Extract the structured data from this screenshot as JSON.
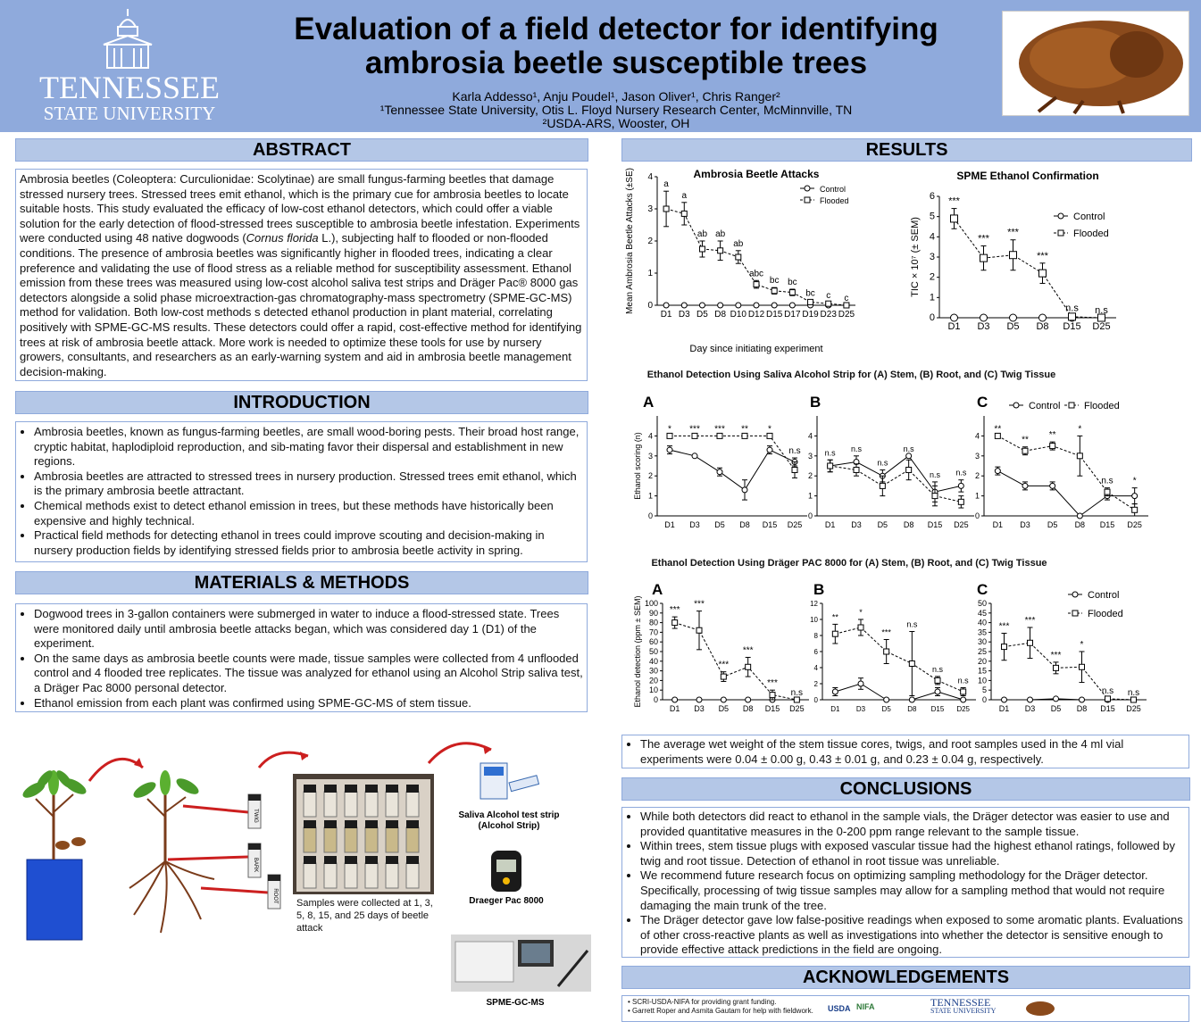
{
  "header": {
    "title_line1": "Evaluation of a field detector for identifying",
    "title_line2": "ambrosia beetle susceptible trees",
    "authors": "Karla Addesso¹, Anju Poudel¹, Jason Oliver¹, Chris Ranger²",
    "affil1": "¹Tennessee State University, Otis L. Floyd Nursery Research Center, McMinnville, TN",
    "affil2": "²USDA-ARS, Wooster, OH",
    "logo_line1": "TENNESSEE",
    "logo_line2": "STATE UNIVERSITY"
  },
  "abstract": {
    "heading": "ABSTRACT",
    "text_a": "Ambrosia beetles (Coleoptera: Curculionidae: Scolytinae) are small fungus-farming beetles that damage stressed nursery trees. Stressed trees emit ethanol, which is the primary cue for ambrosia beetles to locate suitable hosts. This study evaluated the efficacy of low-cost ethanol detectors, which could offer a viable solution for the early detection of flood-stressed trees susceptible to ambrosia beetle infestation. Experiments were conducted using 48 native dogwoods (",
    "text_italic": "Cornus florida",
    "text_b": " L.), subjecting half to flooded or non-flooded conditions. The presence of ambrosia beetles was significantly higher in flooded trees, indicating a clear preference and validating the use of flood stress as a reliable method for susceptibility assessment. Ethanol emission from these trees was measured using low-cost alcohol saliva test strips and Dräger Pac® 8000 gas detectors alongside a solid phase microextraction-gas chromatography-mass spectrometry (SPME-GC-MS) method for validation. Both low-cost methods s detected ethanol production in plant material, correlating positively with SPME-GC-MS results. These detectors could offer a rapid, cost-effective method for identifying trees at risk of ambrosia beetle attack. More work is needed to optimize these tools for use by nursery growers, consultants, and researchers as an early-warning system and aid in ambrosia beetle management decision-making."
  },
  "introduction": {
    "heading": "INTRODUCTION",
    "items": [
      "Ambrosia beetles, known as fungus-farming beetles, are small wood-boring pests. Their broad host range, cryptic habitat, haplodiploid reproduction, and sib-mating favor their dispersal and establishment in new regions.",
      "Ambrosia beetles are attracted to stressed trees in nursery production. Stressed trees emit ethanol, which is the primary ambrosia beetle attractant.",
      "Chemical methods exist to detect ethanol emission in trees, but these methods have historically been expensive and highly technical.",
      "Practical field methods for detecting ethanol in trees could improve scouting and decision-making in nursery production fields by identifying stressed fields prior to ambrosia beetle activity in spring."
    ]
  },
  "methods": {
    "heading": "MATERIALS & METHODS",
    "items": [
      "Dogwood trees in 3-gallon containers were submerged in water to induce a flood-stressed state. Trees were monitored daily until ambrosia beetle attacks began, which was considered day 1 (D1) of the experiment.",
      "On the same days as ambrosia beetle counts were made, tissue samples were collected from 4 unflooded control and 4 flooded tree replicates. The tissue was analyzed for ethanol using an Alcohol Strip saliva test, a Dräger Pac 8000 personal detector.",
      "Ethanol emission from each plant was confirmed using SPME-GC-MS of stem tissue."
    ],
    "fig": {
      "twig": "TWIG",
      "bark": "BARK",
      "root": "ROOT",
      "samples_caption": "Samples were collected at 1, 3, 5, 8, 15, and 25 days of beetle attack",
      "strip_label1": "Saliva Alcohol test strip",
      "strip_label2": "(Alcohol Strip)",
      "drager_label": "Draeger Pac 8000",
      "gcms_label": "SPME-GC-MS"
    }
  },
  "results": {
    "heading": "RESULTS",
    "note": "The average wet weight of the stem tissue cores, twigs, and root samples used in the 4 ml vial experiments were 0.04 ± 0.00 g, 0.43 ± 0.01 g, and 0.23 ± 0.04 g, respectively.",
    "strip_title": "Ethanol Detection Using Saliva Alcohol Strip for (A) Stem, (B) Root, and (C) Twig Tissue",
    "drager_title": "Ethanol Detection Using Dräger PAC 8000 for (A) Stem, (B) Root, and (C) Twig Tissue"
  },
  "conclusions": {
    "heading": "CONCLUSIONS",
    "items": [
      "While both detectors did react to ethanol in the sample vials, the Dräger detector was easier to use and provided quantitative measures in the 0-200 ppm range relevant to the sample tissue.",
      "Within trees, stem tissue plugs with exposed vascular tissue had the highest ethanol ratings, followed by twig and root tissue. Detection of ethanol in root tissue was unreliable.",
      "We recommend future research focus on optimizing sampling methodology for the Dräger detector. Specifically, processing of twig tissue samples may allow for a sampling method that would not require damaging the main trunk of the tree.",
      "The Dräger detector gave low false-positive readings when exposed to some aromatic plants. Evaluations of other cross-reactive plants as well as investigations into whether the detector is sensitive enough to provide effective attack predictions in the field are ongoing."
    ]
  },
  "acknowledgements": {
    "heading": "ACKNOWLEDGEMENTS",
    "items": [
      "SCRI-USDA-NIFA for providing grant funding.",
      "Garrett Roper and Asmita Gautam for help with fieldwork."
    ],
    "usda": "USDA",
    "nifa": "NIFA",
    "tsu1": "TENNESSEE",
    "tsu2": "STATE UNIVERSITY"
  },
  "chart_data": [
    {
      "id": "attacks",
      "type": "line",
      "title": "Ambrosia Beetle Attacks",
      "xlabel": "Day since initiating experiment",
      "ylabel": "Mean Ambrosia Beetle Attacks (±SE)",
      "categories": [
        "D1",
        "D3",
        "D5",
        "D8",
        "D10",
        "D12",
        "D15",
        "D17",
        "D19",
        "D23",
        "D25"
      ],
      "ylim": [
        0,
        4
      ],
      "yticks": [
        0,
        1,
        2,
        3,
        4
      ],
      "legend": "top-right",
      "series": [
        {
          "name": "Control",
          "values": [
            0,
            0,
            0,
            0,
            0,
            0,
            0,
            0,
            0,
            0,
            0
          ],
          "err": [
            0,
            0,
            0,
            0,
            0,
            0,
            0,
            0,
            0,
            0,
            0
          ]
        },
        {
          "name": "Flooded",
          "values": [
            3.0,
            2.85,
            1.75,
            1.7,
            1.5,
            0.65,
            0.45,
            0.4,
            0.1,
            0.05,
            0.0
          ],
          "err": [
            0.55,
            0.35,
            0.25,
            0.3,
            0.2,
            0.12,
            0.1,
            0.1,
            0.05,
            0.03,
            0.0
          ]
        }
      ],
      "annotations": [
        "a",
        "a",
        "ab",
        "ab",
        "ab",
        "abc",
        "bc",
        "bc",
        "bc",
        "c",
        "c"
      ]
    },
    {
      "id": "spme",
      "type": "line",
      "title": "SPME Ethanol Confirmation",
      "ylabel": "TIC × 10⁷ (± SEM)",
      "categories": [
        "D1",
        "D3",
        "D5",
        "D8",
        "D15",
        "D25"
      ],
      "ylim": [
        0,
        6
      ],
      "yticks": [
        0,
        1,
        2,
        3,
        4,
        5,
        6
      ],
      "legend": "top-right",
      "series": [
        {
          "name": "Control",
          "values": [
            0,
            0,
            0,
            0,
            0,
            0
          ],
          "err": [
            0,
            0,
            0,
            0,
            0,
            0
          ]
        },
        {
          "name": "Flooded",
          "values": [
            4.9,
            2.95,
            3.1,
            2.2,
            0.05,
            0.0
          ],
          "err": [
            0.5,
            0.6,
            0.75,
            0.5,
            0.05,
            0
          ]
        }
      ],
      "annotations": [
        "***",
        "***",
        "***",
        "***",
        "n.s",
        "n.s"
      ]
    },
    {
      "id": "strip-a",
      "panel": "A",
      "type": "line",
      "ylabel": "Ethanol scoring (n)",
      "categories": [
        "D1",
        "D3",
        "D5",
        "D8",
        "D15",
        "D25"
      ],
      "ylim": [
        0,
        5
      ],
      "yticks": [
        0,
        1,
        2,
        3,
        4
      ],
      "series": [
        {
          "name": "Control",
          "values": [
            3.3,
            3.0,
            2.2,
            1.3,
            3.3,
            2.7
          ],
          "err": [
            0.2,
            0,
            0.2,
            0.5,
            0.2,
            0.2
          ]
        },
        {
          "name": "Flooded",
          "values": [
            4,
            4,
            4,
            4,
            4,
            2.3
          ],
          "err": [
            0,
            0,
            0,
            0,
            0,
            0.4
          ]
        }
      ],
      "annotations": [
        "*",
        "***",
        "***",
        "**",
        "*",
        "n.s"
      ]
    },
    {
      "id": "strip-b",
      "panel": "B",
      "type": "line",
      "categories": [
        "D1",
        "D3",
        "D5",
        "D8",
        "D15",
        "D25"
      ],
      "ylim": [
        0,
        5
      ],
      "yticks": [
        0,
        1,
        2,
        3,
        4
      ],
      "series": [
        {
          "name": "Control",
          "values": [
            2.5,
            2.7,
            2.0,
            3.0,
            1.2,
            1.5
          ],
          "err": [
            0.3,
            0.3,
            0.3,
            0,
            0.5,
            0.3
          ]
        },
        {
          "name": "Flooded",
          "values": [
            2.5,
            2.3,
            1.5,
            2.3,
            1.0,
            0.7
          ],
          "err": [
            0.3,
            0.3,
            0.5,
            0.5,
            0.5,
            0.3
          ]
        }
      ],
      "annotations": [
        "n.s",
        "n.s",
        "n.s",
        "n.s",
        "n.s",
        "n.s"
      ]
    },
    {
      "id": "strip-c",
      "panel": "C",
      "type": "line",
      "categories": [
        "D1",
        "D3",
        "D5",
        "D8",
        "D15",
        "D25"
      ],
      "ylim": [
        0,
        5
      ],
      "yticks": [
        0,
        1,
        2,
        3,
        4
      ],
      "legend": "top",
      "series": [
        {
          "name": "Control",
          "values": [
            2.25,
            1.5,
            1.5,
            0,
            1.0,
            1.0
          ],
          "err": [
            0.2,
            0.2,
            0.2,
            0,
            0.2,
            0.4
          ]
        },
        {
          "name": "Flooded",
          "values": [
            4,
            3.25,
            3.5,
            3.0,
            1.2,
            0.3
          ],
          "err": [
            0,
            0.2,
            0.2,
            1.0,
            0.2,
            0.3
          ]
        }
      ],
      "annotations": [
        "**",
        "**",
        "**",
        "*",
        "n.s",
        "*"
      ]
    },
    {
      "id": "drager-a",
      "panel": "A",
      "type": "line",
      "ylabel": "Ethanol detection (ppm ± SEM)",
      "categories": [
        "D1",
        "D3",
        "D5",
        "D8",
        "D15",
        "D25"
      ],
      "ylim": [
        0,
        100
      ],
      "yticks": [
        0,
        10,
        20,
        30,
        40,
        50,
        60,
        70,
        80,
        90,
        100
      ],
      "series": [
        {
          "name": "Control",
          "values": [
            0,
            0,
            0,
            0,
            0,
            0
          ],
          "err": [
            0,
            0,
            0,
            0,
            0,
            0
          ]
        },
        {
          "name": "Flooded",
          "values": [
            80,
            72,
            24,
            34,
            5,
            0
          ],
          "err": [
            6,
            20,
            5,
            10,
            5,
            0
          ]
        }
      ],
      "annotations": [
        "***",
        "***",
        "***",
        "***",
        "***",
        "n.s"
      ]
    },
    {
      "id": "drager-b",
      "panel": "B",
      "type": "line",
      "categories": [
        "D1",
        "D3",
        "D5",
        "D8",
        "D15",
        "D25"
      ],
      "ylim": [
        0,
        12
      ],
      "yticks": [
        0,
        2,
        4,
        6,
        8,
        10,
        12
      ],
      "series": [
        {
          "name": "Control",
          "values": [
            1.0,
            2.0,
            0,
            0,
            1.0,
            0
          ],
          "err": [
            0.5,
            0.7,
            0,
            0,
            0.5,
            0
          ]
        },
        {
          "name": "Flooded",
          "values": [
            8.2,
            9.0,
            6.0,
            4.5,
            2.4,
            1.0
          ],
          "err": [
            1.2,
            1.0,
            1.5,
            4.0,
            0.5,
            0.5
          ]
        }
      ],
      "annotations": [
        "**",
        "*",
        "***",
        "n.s",
        "n.s",
        "n.s"
      ]
    },
    {
      "id": "drager-c",
      "panel": "C",
      "type": "line",
      "categories": [
        "D1",
        "D3",
        "D5",
        "D8",
        "D15",
        "D25"
      ],
      "ylim": [
        0,
        50
      ],
      "yticks": [
        0,
        5,
        10,
        15,
        20,
        25,
        30,
        35,
        40,
        45,
        50
      ],
      "legend": "top-right",
      "series": [
        {
          "name": "Control",
          "values": [
            0,
            0,
            0.5,
            0,
            0,
            0
          ],
          "err": [
            0,
            0,
            0,
            0,
            0,
            0
          ]
        },
        {
          "name": "Flooded",
          "values": [
            27.5,
            29.5,
            16.5,
            17,
            0.5,
            0
          ],
          "err": [
            7,
            8,
            3,
            8,
            0.5,
            0
          ]
        }
      ],
      "annotations": [
        "***",
        "***",
        "***",
        "*",
        "n.s",
        "n.s"
      ]
    }
  ],
  "colors": {
    "header_bg": "#8faadc",
    "section_head_bg": "#b4c7e7",
    "box_border": "#8faadc",
    "arrow_red": "#cc1f1f",
    "container_blue": "#1f4fd1"
  }
}
